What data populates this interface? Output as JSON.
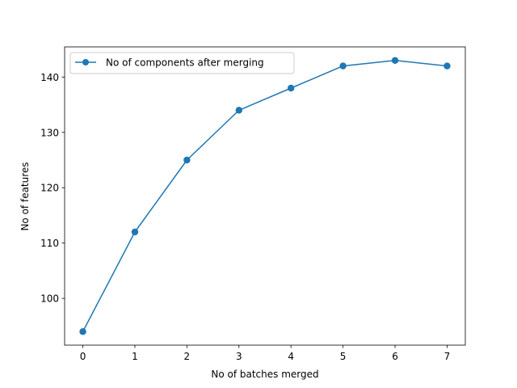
{
  "chart_data": {
    "type": "line",
    "title": "",
    "xlabel": "No of batches merged",
    "ylabel": "No of features",
    "x": [
      0,
      1,
      2,
      3,
      4,
      5,
      6,
      7
    ],
    "series": [
      {
        "name": "No of components after merging",
        "values": [
          94,
          112,
          125,
          134,
          138,
          142,
          143,
          142
        ],
        "color": "#1f77b4",
        "marker": "circle"
      }
    ],
    "xlim": [
      -0.35,
      7.35
    ],
    "ylim": [
      91.55,
      145.45
    ],
    "xticks": [
      0,
      1,
      2,
      3,
      4,
      5,
      6,
      7
    ],
    "yticks": [
      100,
      110,
      120,
      130,
      140
    ],
    "grid": false,
    "legend_position": "top-left"
  }
}
